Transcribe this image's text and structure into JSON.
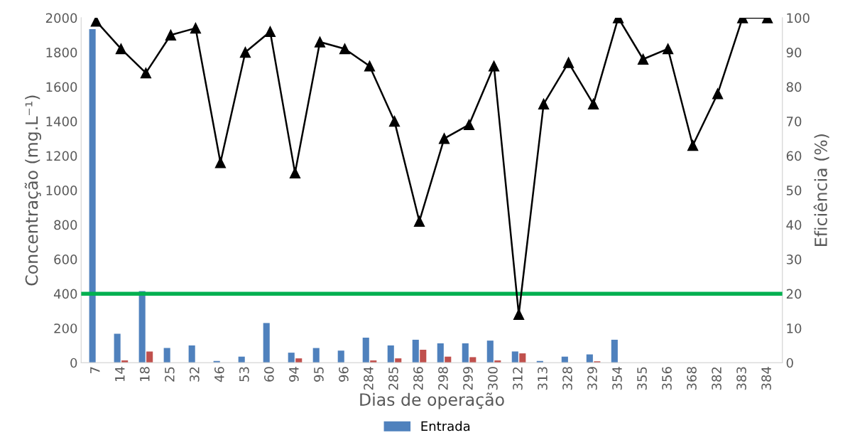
{
  "chart_data": {
    "type": "bar",
    "xlabel": "Dias de operação",
    "ylabel": "Concentração (mg.L⁻¹)",
    "y2label": "Eficiência (%)",
    "categories": [
      "7",
      "14",
      "18",
      "25",
      "32",
      "46",
      "53",
      "60",
      "94",
      "95",
      "96",
      "284",
      "285",
      "286",
      "298",
      "299",
      "300",
      "312",
      "313",
      "328",
      "329",
      "354",
      "355",
      "356",
      "368",
      "382",
      "383",
      "384"
    ],
    "series": [
      {
        "name": "Entrada",
        "color": "#4f81bd",
        "values": [
          1934,
          168,
          415,
          85,
          100,
          10,
          35,
          230,
          58,
          85,
          70,
          145,
          100,
          133,
          112,
          112,
          128,
          65,
          10,
          35,
          48,
          133,
          null,
          null,
          null,
          null,
          null,
          null
        ]
      },
      {
        "color": "#c0504d",
        "values": [
          null,
          13,
          65,
          null,
          null,
          null,
          null,
          null,
          25,
          null,
          null,
          13,
          25,
          75,
          35,
          32,
          13,
          54,
          null,
          null,
          8,
          null,
          null,
          null,
          null,
          null,
          null,
          null
        ]
      },
      {
        "type": "line",
        "axis": "y2",
        "color": "#000000",
        "marker": "triangle",
        "line_style": "solid",
        "values": [
          99,
          91,
          84,
          95,
          97,
          58,
          90,
          96,
          55,
          93,
          91,
          86,
          70,
          41,
          65,
          69,
          86,
          14,
          75,
          87,
          75,
          100,
          88,
          91,
          63,
          78,
          100,
          100
        ]
      }
    ],
    "ylim": [
      0,
      2000
    ],
    "yticks": [
      0,
      200,
      400,
      600,
      800,
      1000,
      1200,
      1400,
      1600,
      1800,
      2000
    ],
    "y2lim": [
      0,
      100
    ],
    "y2ticks": [
      0,
      10,
      20,
      30,
      40,
      50,
      60,
      70,
      80,
      90,
      100
    ],
    "ref_lines": [
      {
        "axis": "y2",
        "value": 20,
        "color": "#00b050",
        "line_style": "solid"
      }
    ],
    "grid": false,
    "legend": "bottom"
  }
}
